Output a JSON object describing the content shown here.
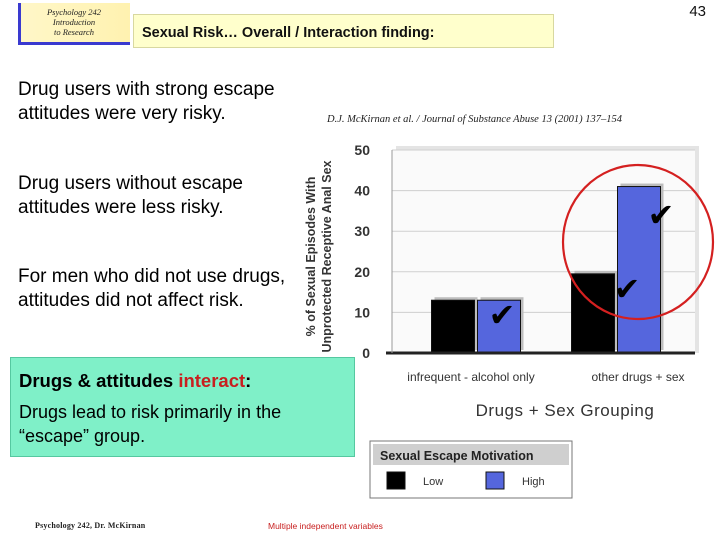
{
  "header": {
    "logo_lines": [
      "Psychology 242",
      "Introduction",
      "to Research"
    ],
    "title": "Sexual Risk… Overall / Interaction finding:",
    "slide_number": "43"
  },
  "bullets": [
    "Drug users with strong escape attitudes were very risky.",
    "Drug users without escape attitudes were less risky.",
    "For men who did not use drugs, attitudes did not affect risk."
  ],
  "callout": {
    "heading_prefix": "Drugs & attitudes ",
    "heading_highlight": "interact",
    "heading_suffix": ":",
    "body": "Drugs lead to risk primarily in the “escape” group."
  },
  "footer": {
    "left": "Psychology 242, Dr. McKirnan",
    "center": "Multiple independent variables"
  },
  "colors": {
    "low_bar": "#000000",
    "high_bar": "#5566dd",
    "annotation_circle": "#d42020",
    "callout_bg": "#7ff0c8",
    "title_bg": "#ffffcc"
  },
  "chart_data": {
    "type": "bar",
    "citation": "D.J. McKirnan et al. / Journal of Substance Abuse 13 (2001) 137–154",
    "ylabel_lines": [
      "% of Sexual Episodes With",
      "Unprotected Receptive Anal Sex"
    ],
    "xlabel": "Drugs + Sex Grouping",
    "categories": [
      "infrequent - alcohol only",
      "other drugs + sex"
    ],
    "series": [
      {
        "name": "Low",
        "values": [
          13,
          19.5
        ]
      },
      {
        "name": "High",
        "values": [
          13,
          41
        ]
      }
    ],
    "ylim": [
      0,
      50
    ],
    "yticks": [
      "0",
      "10",
      "20",
      "30",
      "40",
      "50"
    ],
    "legend": {
      "title": "Sexual Escape Motivation",
      "placement": "bottom"
    },
    "annotations": {
      "checkmarks": "✔",
      "circled_group": "other drugs + sex"
    }
  }
}
